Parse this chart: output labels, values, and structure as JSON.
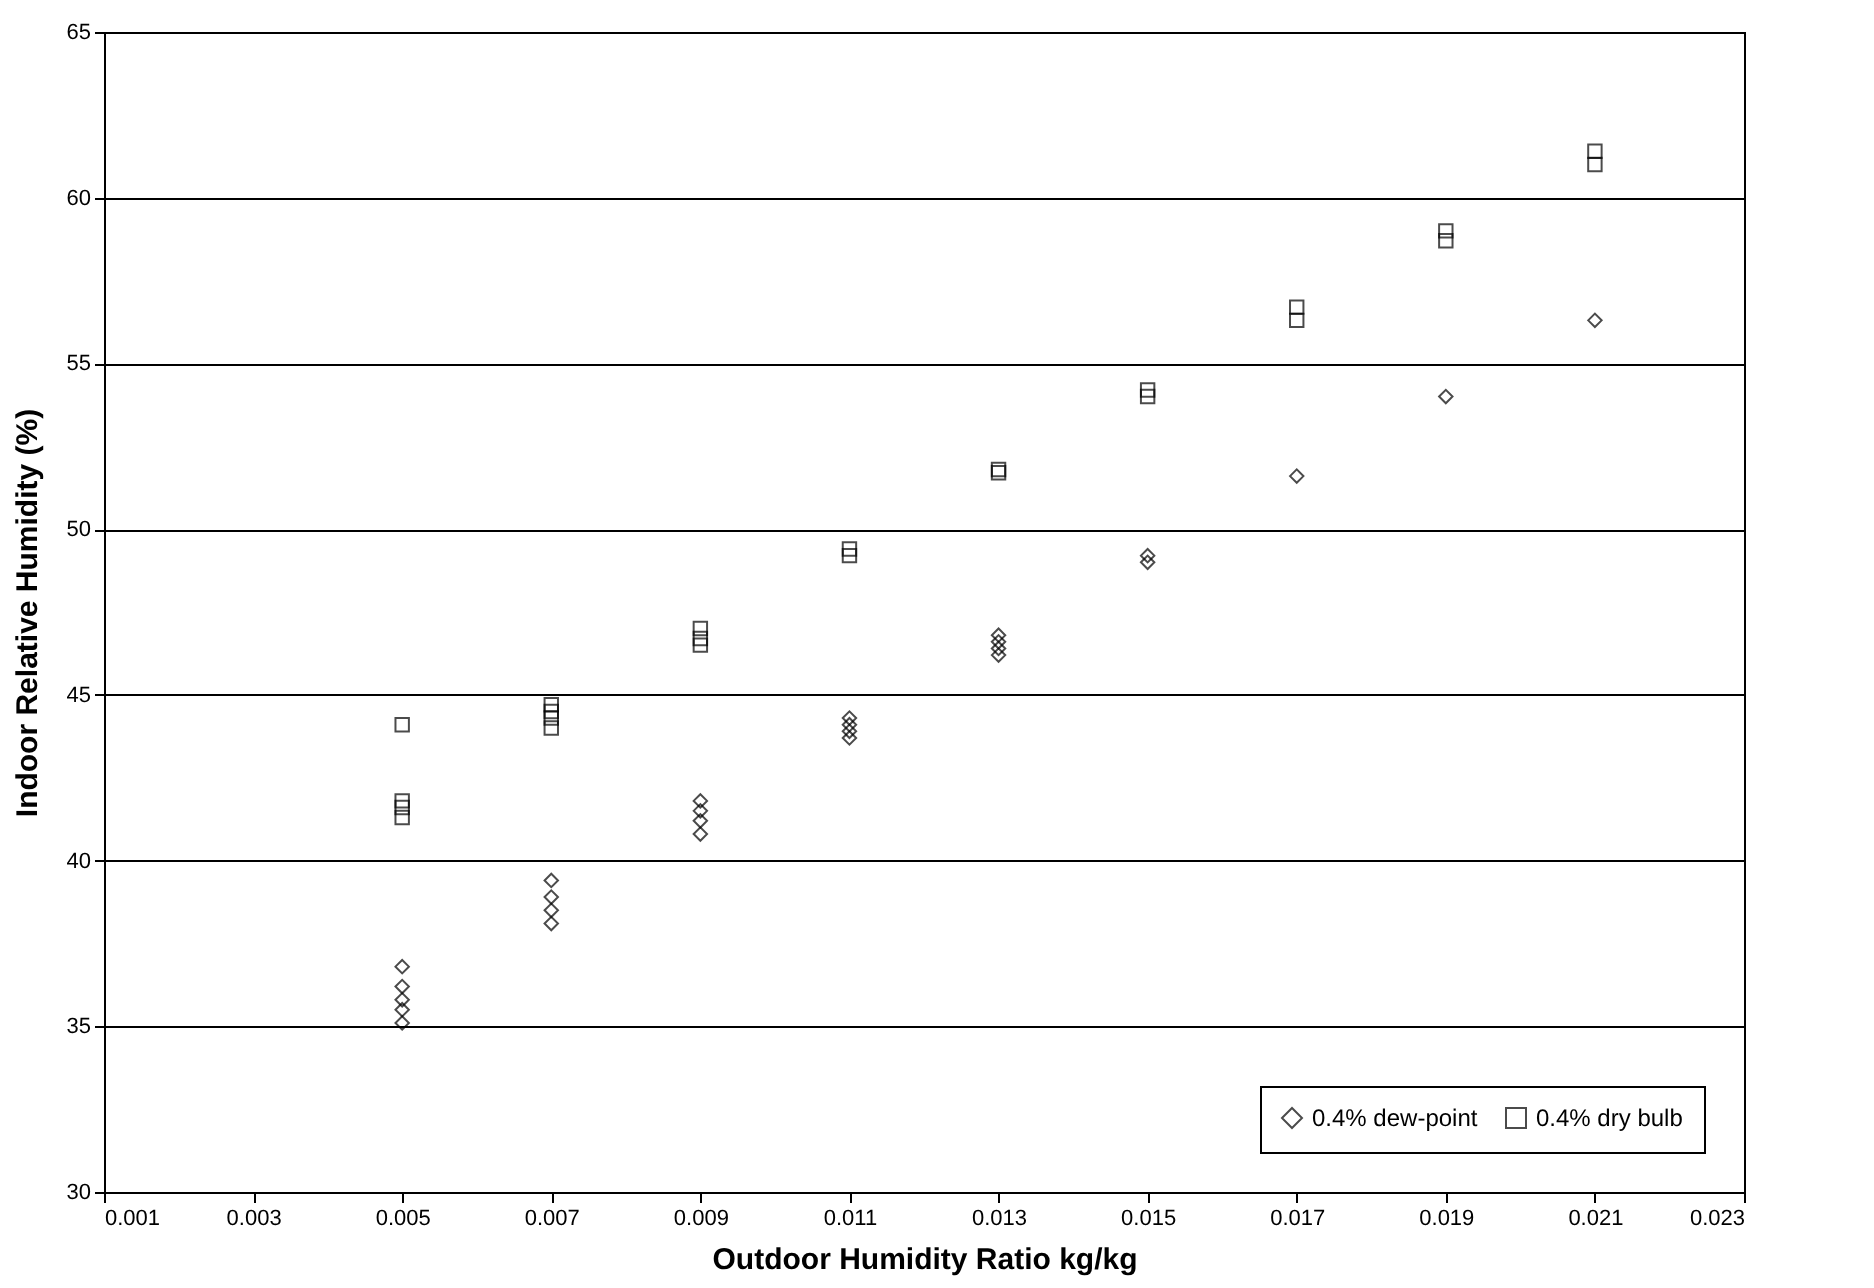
{
  "chart_data": {
    "type": "scatter",
    "xlabel": "Outdoor Humidity Ratio kg/kg",
    "ylabel": "Indoor Relative Humidity (%)",
    "xlim": [
      0.001,
      0.023
    ],
    "xticks": [
      0.001,
      0.003,
      0.005,
      0.007,
      0.009,
      0.011,
      0.013,
      0.015,
      0.017,
      0.019,
      0.021,
      0.023
    ],
    "ylim": [
      30,
      65
    ],
    "yticks": [
      30,
      35,
      40,
      45,
      50,
      55,
      60,
      65
    ],
    "grid": "y",
    "legend": "bottom right",
    "series": [
      {
        "name": "0.4% dew-point",
        "color": "#000000",
        "marker": "diamond",
        "x": [
          0.005,
          0.005,
          0.005,
          0.005,
          0.005,
          0.007,
          0.007,
          0.007,
          0.007,
          0.009,
          0.009,
          0.009,
          0.009,
          0.011,
          0.011,
          0.011,
          0.011,
          0.013,
          0.013,
          0.013,
          0.013,
          0.015,
          0.015,
          0.017,
          0.019,
          0.021
        ],
        "values": [
          36.8,
          36.2,
          35.8,
          35.5,
          35.1,
          39.4,
          38.9,
          38.5,
          38.1,
          41.8,
          41.5,
          41.2,
          40.8,
          44.3,
          44.1,
          43.9,
          43.7,
          46.8,
          46.6,
          46.4,
          46.2,
          49.2,
          49.0,
          51.6,
          54.0,
          56.3
        ]
      },
      {
        "name": "0.4% dry bulb",
        "color": "#000000",
        "marker": "square",
        "x": [
          0.005,
          0.005,
          0.005,
          0.005,
          0.007,
          0.007,
          0.007,
          0.007,
          0.009,
          0.009,
          0.009,
          0.011,
          0.011,
          0.013,
          0.013,
          0.015,
          0.015,
          0.017,
          0.017,
          0.019,
          0.019,
          0.021,
          0.021
        ],
        "values": [
          44.1,
          41.8,
          41.6,
          41.3,
          44.7,
          44.5,
          44.3,
          44.0,
          47.0,
          46.7,
          46.5,
          49.4,
          49.2,
          51.8,
          51.7,
          54.2,
          54.0,
          56.7,
          56.3,
          59.0,
          58.7,
          61.4,
          61.0
        ]
      }
    ]
  }
}
